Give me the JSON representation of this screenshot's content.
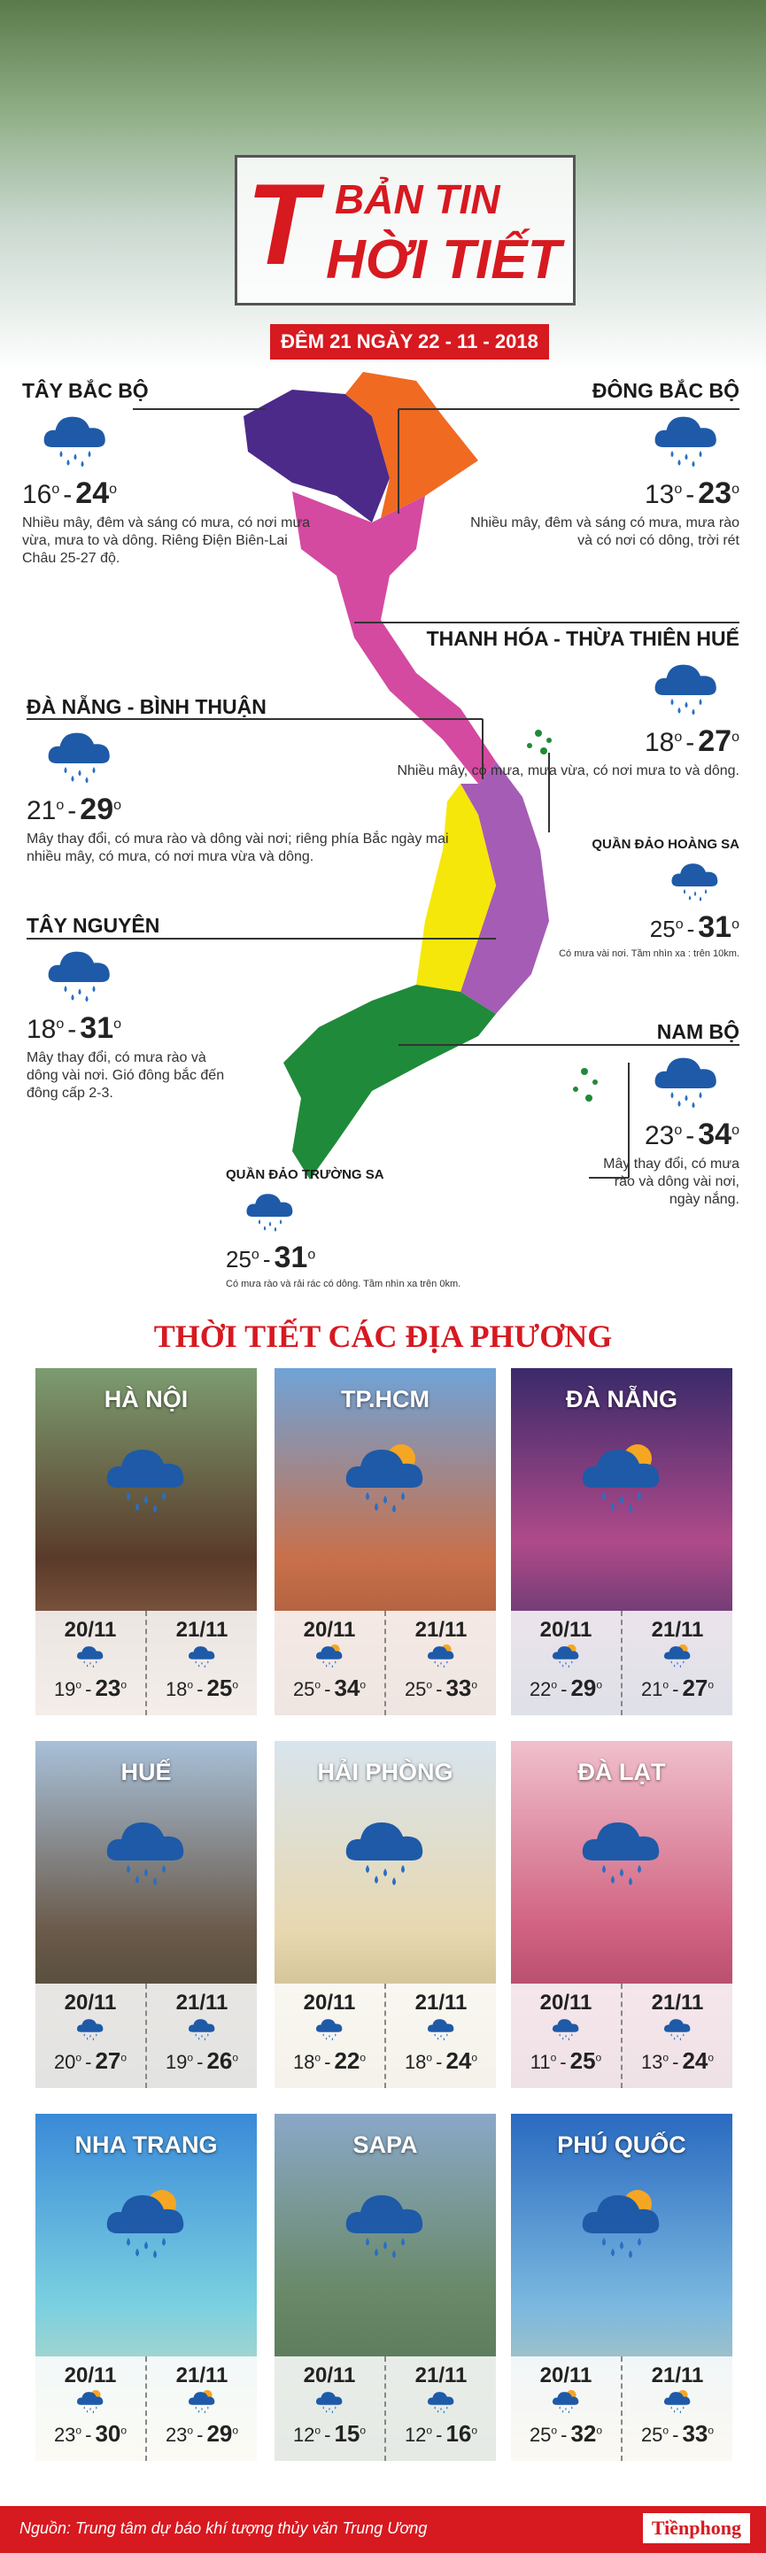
{
  "header": {
    "title_top": "BẢN TIN",
    "title_initial": "T",
    "title_rest": "HỜI TIẾT",
    "date": "ĐÊM 21 NGÀY 22 - 11 - 2018"
  },
  "degree": "o",
  "separator": "-",
  "regions": [
    {
      "name": "TÂY BẮC BỘ",
      "low": 16,
      "high": 24,
      "description": "Nhiều mây, đêm và sáng có mưa, có nơi mưa vừa, mưa to và dông. Riêng Điện Biên-Lai Châu 25-27 độ."
    },
    {
      "name": "ĐÔNG BẮC BỘ",
      "low": 13,
      "high": 23,
      "description": "Nhiều mây, đêm và sáng có mưa, mưa rào và có nơi có dông, trời rét"
    },
    {
      "name": "THANH HÓA - THỪA THIÊN HUẾ",
      "low": 18,
      "high": 27,
      "description": "Nhiều mây, có mưa, mưa vừa, có nơi mưa to và dông."
    },
    {
      "name": "ĐÀ NẴNG - BÌNH THUẬN",
      "low": 21,
      "high": 29,
      "description": "Mây thay đổi, có mưa rào và dông vài nơi; riêng phía Bắc ngày mai nhiều mây, có mưa, có nơi mưa vừa và dông."
    },
    {
      "name": "QUẦN ĐẢO HOÀNG SA",
      "low": 25,
      "high": 31,
      "description": "Có mưa vài nơi. Tầm nhìn xa : trên 10km."
    },
    {
      "name": "TÂY NGUYÊN",
      "low": 18,
      "high": 31,
      "description": "Mây thay đổi, có mưa rào và dông vài nơi. Gió đông bắc đến đông cấp 2-3."
    },
    {
      "name": "NAM BỘ",
      "low": 23,
      "high": 34,
      "description": "Mây thay đổi, có mưa rào và dông vài nơi, ngày nắng."
    },
    {
      "name": "QUẦN ĐẢO TRƯỜNG SA",
      "low": 25,
      "high": 31,
      "description": "Có mưa rào và rải rác có dông. Tầm nhìn xa trên 0km."
    }
  ],
  "section_title": "THỜI TIẾT CÁC ĐỊA PHƯƠNG",
  "cities": [
    {
      "name": "HÀ NỘI",
      "days": [
        {
          "date": "20/11",
          "low": 19,
          "high": 23
        },
        {
          "date": "21/11",
          "low": 18,
          "high": 25
        }
      ]
    },
    {
      "name": "TP.HCM",
      "days": [
        {
          "date": "20/11",
          "low": 25,
          "high": 34
        },
        {
          "date": "21/11",
          "low": 25,
          "high": 33
        }
      ]
    },
    {
      "name": "ĐÀ NẴNG",
      "days": [
        {
          "date": "20/11",
          "low": 22,
          "high": 29
        },
        {
          "date": "21/11",
          "low": 21,
          "high": 27
        }
      ]
    },
    {
      "name": "HUẾ",
      "days": [
        {
          "date": "20/11",
          "low": 20,
          "high": 27
        },
        {
          "date": "21/11",
          "low": 19,
          "high": 26
        }
      ]
    },
    {
      "name": "HẢI PHÒNG",
      "days": [
        {
          "date": "20/11",
          "low": 18,
          "high": 22
        },
        {
          "date": "21/11",
          "low": 18,
          "high": 24
        }
      ]
    },
    {
      "name": "ĐÀ LẠT",
      "days": [
        {
          "date": "20/11",
          "low": 11,
          "high": 25
        },
        {
          "date": "21/11",
          "low": 13,
          "high": 24
        }
      ]
    },
    {
      "name": "NHA TRANG",
      "days": [
        {
          "date": "20/11",
          "low": 23,
          "high": 30
        },
        {
          "date": "21/11",
          "low": 23,
          "high": 29
        }
      ]
    },
    {
      "name": "SAPA",
      "days": [
        {
          "date": "20/11",
          "low": 12,
          "high": 15
        },
        {
          "date": "21/11",
          "low": 12,
          "high": 16
        }
      ]
    },
    {
      "name": "PHÚ QUỐC",
      "days": [
        {
          "date": "20/11",
          "low": 25,
          "high": 32
        },
        {
          "date": "21/11",
          "low": 25,
          "high": 33
        }
      ]
    }
  ],
  "footer": {
    "source": "Nguồn: Trung tâm dự báo khí tượng thủy văn Trung Ương",
    "logo": "Tiềnphong"
  }
}
